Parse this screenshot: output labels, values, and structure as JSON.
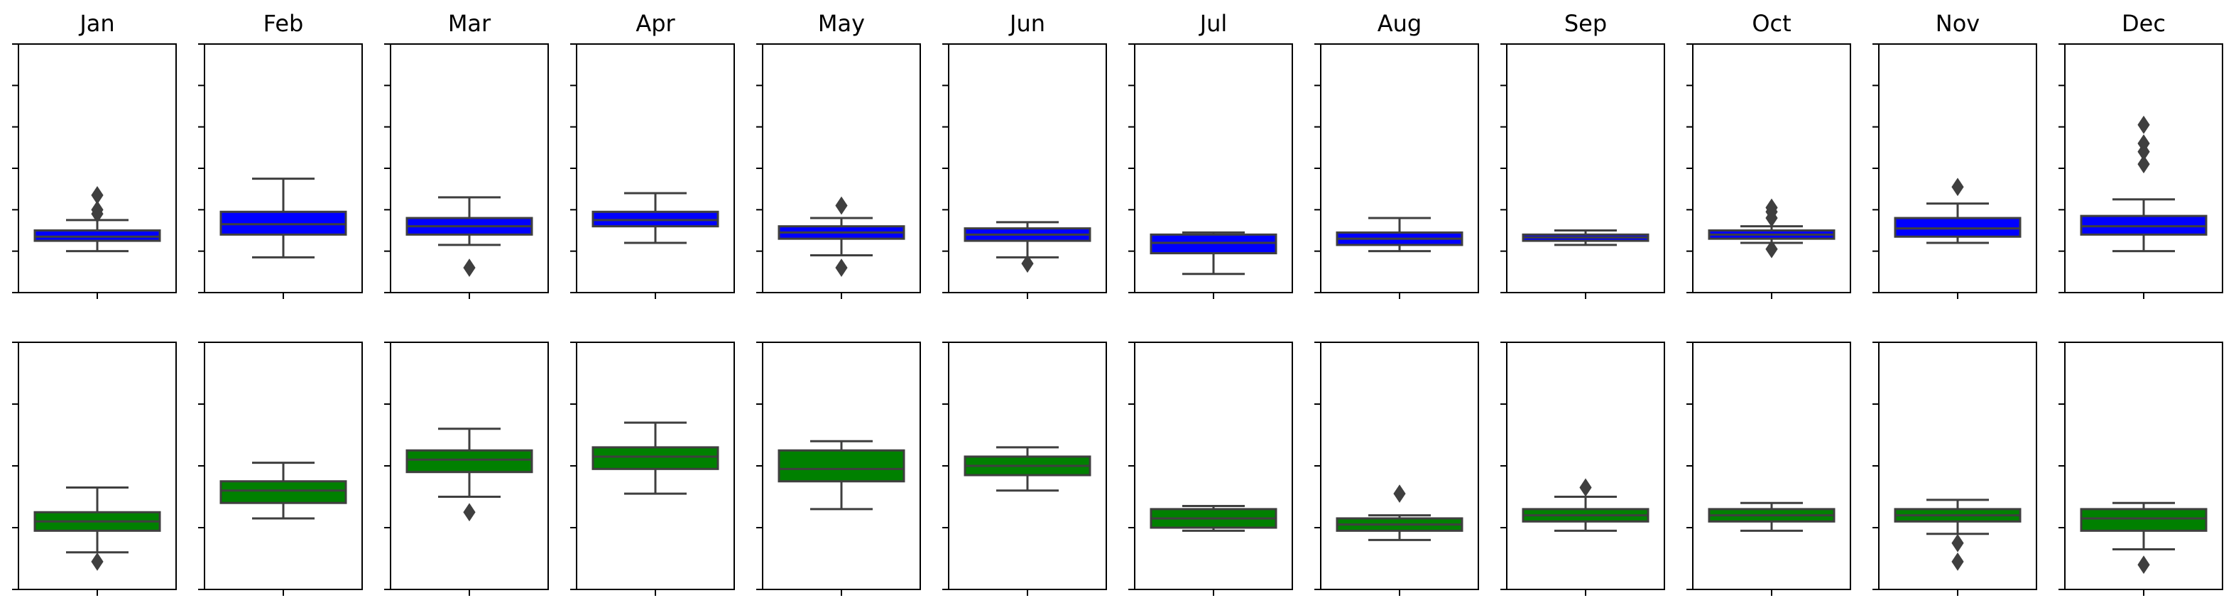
{
  "figure": {
    "months": [
      "Jan",
      "Feb",
      "Mar",
      "Apr",
      "May",
      "Jun",
      "Jul",
      "Aug",
      "Sep",
      "Oct",
      "Nov",
      "Dec"
    ],
    "colors": {
      "top_box": "#0000ff",
      "bottom_box": "#008000",
      "line": "#3f3f3f",
      "frame": "#000000"
    }
  },
  "chart_data": [
    {
      "type": "box",
      "row": "top",
      "ylim": [
        0,
        6
      ],
      "yticks": [
        0,
        1,
        2,
        3,
        4,
        5,
        6
      ],
      "tick_labels_shown": false,
      "series": [
        {
          "month": "Jan",
          "q1": 1.25,
          "median": 1.35,
          "q3": 1.5,
          "whisker_low": 1.0,
          "whisker_high": 1.75,
          "outliers": [
            1.9,
            2.0,
            2.35
          ]
        },
        {
          "month": "Feb",
          "q1": 1.4,
          "median": 1.65,
          "q3": 1.95,
          "whisker_low": 0.85,
          "whisker_high": 2.75,
          "outliers": []
        },
        {
          "month": "Mar",
          "q1": 1.4,
          "median": 1.6,
          "q3": 1.8,
          "whisker_low": 1.15,
          "whisker_high": 2.3,
          "outliers": [
            0.6
          ]
        },
        {
          "month": "Apr",
          "q1": 1.6,
          "median": 1.75,
          "q3": 1.95,
          "whisker_low": 1.2,
          "whisker_high": 2.4,
          "outliers": []
        },
        {
          "month": "May",
          "q1": 1.3,
          "median": 1.45,
          "q3": 1.6,
          "whisker_low": 0.9,
          "whisker_high": 1.8,
          "outliers": [
            2.1,
            0.6
          ]
        },
        {
          "month": "Jun",
          "q1": 1.25,
          "median": 1.4,
          "q3": 1.55,
          "whisker_low": 0.85,
          "whisker_high": 1.7,
          "outliers": [
            0.7
          ]
        },
        {
          "month": "Jul",
          "q1": 0.95,
          "median": 1.2,
          "q3": 1.4,
          "whisker_low": 0.45,
          "whisker_high": 1.45,
          "outliers": []
        },
        {
          "month": "Aug",
          "q1": 1.15,
          "median": 1.3,
          "q3": 1.45,
          "whisker_low": 1.0,
          "whisker_high": 1.8,
          "outliers": []
        },
        {
          "month": "Sep",
          "q1": 1.25,
          "median": 1.33,
          "q3": 1.4,
          "whisker_low": 1.15,
          "whisker_high": 1.5,
          "outliers": []
        },
        {
          "month": "Oct",
          "q1": 1.3,
          "median": 1.4,
          "q3": 1.5,
          "whisker_low": 1.2,
          "whisker_high": 1.6,
          "outliers": [
            1.8,
            1.95,
            2.05,
            1.05
          ]
        },
        {
          "month": "Nov",
          "q1": 1.35,
          "median": 1.55,
          "q3": 1.8,
          "whisker_low": 1.2,
          "whisker_high": 2.15,
          "outliers": [
            2.55
          ]
        },
        {
          "month": "Dec",
          "q1": 1.4,
          "median": 1.6,
          "q3": 1.85,
          "whisker_low": 1.0,
          "whisker_high": 2.25,
          "outliers": [
            3.1,
            3.4,
            3.6,
            4.05
          ]
        }
      ]
    },
    {
      "type": "box",
      "row": "bottom",
      "ylim": [
        0,
        4
      ],
      "yticks": [
        0,
        1,
        2,
        3,
        4
      ],
      "tick_labels_shown": false,
      "series": [
        {
          "month": "Jan",
          "q1": 0.95,
          "median": 1.1,
          "q3": 1.25,
          "whisker_low": 0.6,
          "whisker_high": 1.65,
          "outliers": [
            0.45
          ]
        },
        {
          "month": "Feb",
          "q1": 1.4,
          "median": 1.6,
          "q3": 1.75,
          "whisker_low": 1.15,
          "whisker_high": 2.05,
          "outliers": []
        },
        {
          "month": "Mar",
          "q1": 1.9,
          "median": 2.1,
          "q3": 2.25,
          "whisker_low": 1.5,
          "whisker_high": 2.6,
          "outliers": [
            1.25
          ]
        },
        {
          "month": "Apr",
          "q1": 1.95,
          "median": 2.15,
          "q3": 2.3,
          "whisker_low": 1.55,
          "whisker_high": 2.7,
          "outliers": []
        },
        {
          "month": "May",
          "q1": 1.75,
          "median": 1.95,
          "q3": 2.25,
          "whisker_low": 1.3,
          "whisker_high": 2.4,
          "outliers": []
        },
        {
          "month": "Jun",
          "q1": 1.85,
          "median": 2.0,
          "q3": 2.15,
          "whisker_low": 1.6,
          "whisker_high": 2.3,
          "outliers": []
        },
        {
          "month": "Jul",
          "q1": 1.0,
          "median": 1.15,
          "q3": 1.3,
          "whisker_low": 0.95,
          "whisker_high": 1.35,
          "outliers": []
        },
        {
          "month": "Aug",
          "q1": 0.95,
          "median": 1.05,
          "q3": 1.15,
          "whisker_low": 0.8,
          "whisker_high": 1.2,
          "outliers": [
            1.55
          ]
        },
        {
          "month": "Sep",
          "q1": 1.1,
          "median": 1.2,
          "q3": 1.3,
          "whisker_low": 0.95,
          "whisker_high": 1.5,
          "outliers": [
            1.65
          ]
        },
        {
          "month": "Oct",
          "q1": 1.1,
          "median": 1.2,
          "q3": 1.3,
          "whisker_low": 0.95,
          "whisker_high": 1.4,
          "outliers": []
        },
        {
          "month": "Nov",
          "q1": 1.1,
          "median": 1.2,
          "q3": 1.3,
          "whisker_low": 0.9,
          "whisker_high": 1.45,
          "outliers": [
            0.75,
            0.45
          ]
        },
        {
          "month": "Dec",
          "q1": 0.95,
          "median": 1.15,
          "q3": 1.3,
          "whisker_low": 0.65,
          "whisker_high": 1.4,
          "outliers": [
            0.4
          ]
        }
      ]
    }
  ]
}
